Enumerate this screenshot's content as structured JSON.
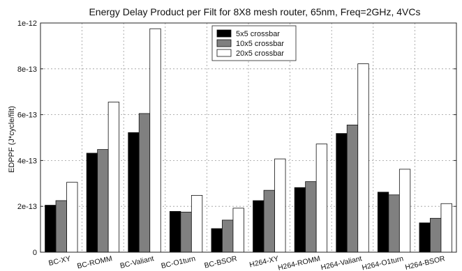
{
  "chart_data": {
    "type": "bar",
    "title": "Energy Delay Product per Filt for 8X8 mesh router, 65nm, Freq=2GHz, 4VCs",
    "xlabel": "",
    "ylabel": "EDPPF (J*cycle/filt)",
    "ylim": [
      0,
      1e-12
    ],
    "yticks": [
      0,
      2e-13,
      4e-13,
      6e-13,
      8e-13,
      1e-12
    ],
    "ytick_labels": [
      "0",
      "2e-13",
      "4e-13",
      "6e-13",
      "8e-13",
      "1e-12"
    ],
    "grid": true,
    "legend_position": "top-center",
    "categories": [
      "BC-XY",
      "BC-ROMM",
      "BC-Valiant",
      "BC-O1turn",
      "BC-BSOR",
      "H264-XY",
      "H264-ROMM",
      "H264-Valiant",
      "H264-O1turn",
      "H264-BSOR"
    ],
    "series": [
      {
        "name": "5x5 crossbar",
        "color": "#000000",
        "values": [
          2.05e-13,
          4.32e-13,
          5.22e-13,
          1.78e-13,
          1.03e-13,
          2.25e-13,
          2.82e-13,
          5.18e-13,
          2.62e-13,
          1.28e-13
        ]
      },
      {
        "name": "10x5 crossbar",
        "color": "#808080",
        "values": [
          2.25e-13,
          4.48e-13,
          6.05e-13,
          1.75e-13,
          1.4e-13,
          2.7e-13,
          3.08e-13,
          5.55e-13,
          2.5e-13,
          1.48e-13
        ]
      },
      {
        "name": "20x5 crossbar",
        "color": "#ffffff",
        "values": [
          3.05e-13,
          6.55e-13,
          9.75e-13,
          2.48e-13,
          1.92e-13,
          4.07e-13,
          4.72e-13,
          8.22e-13,
          3.62e-13,
          2.12e-13
        ]
      }
    ]
  }
}
